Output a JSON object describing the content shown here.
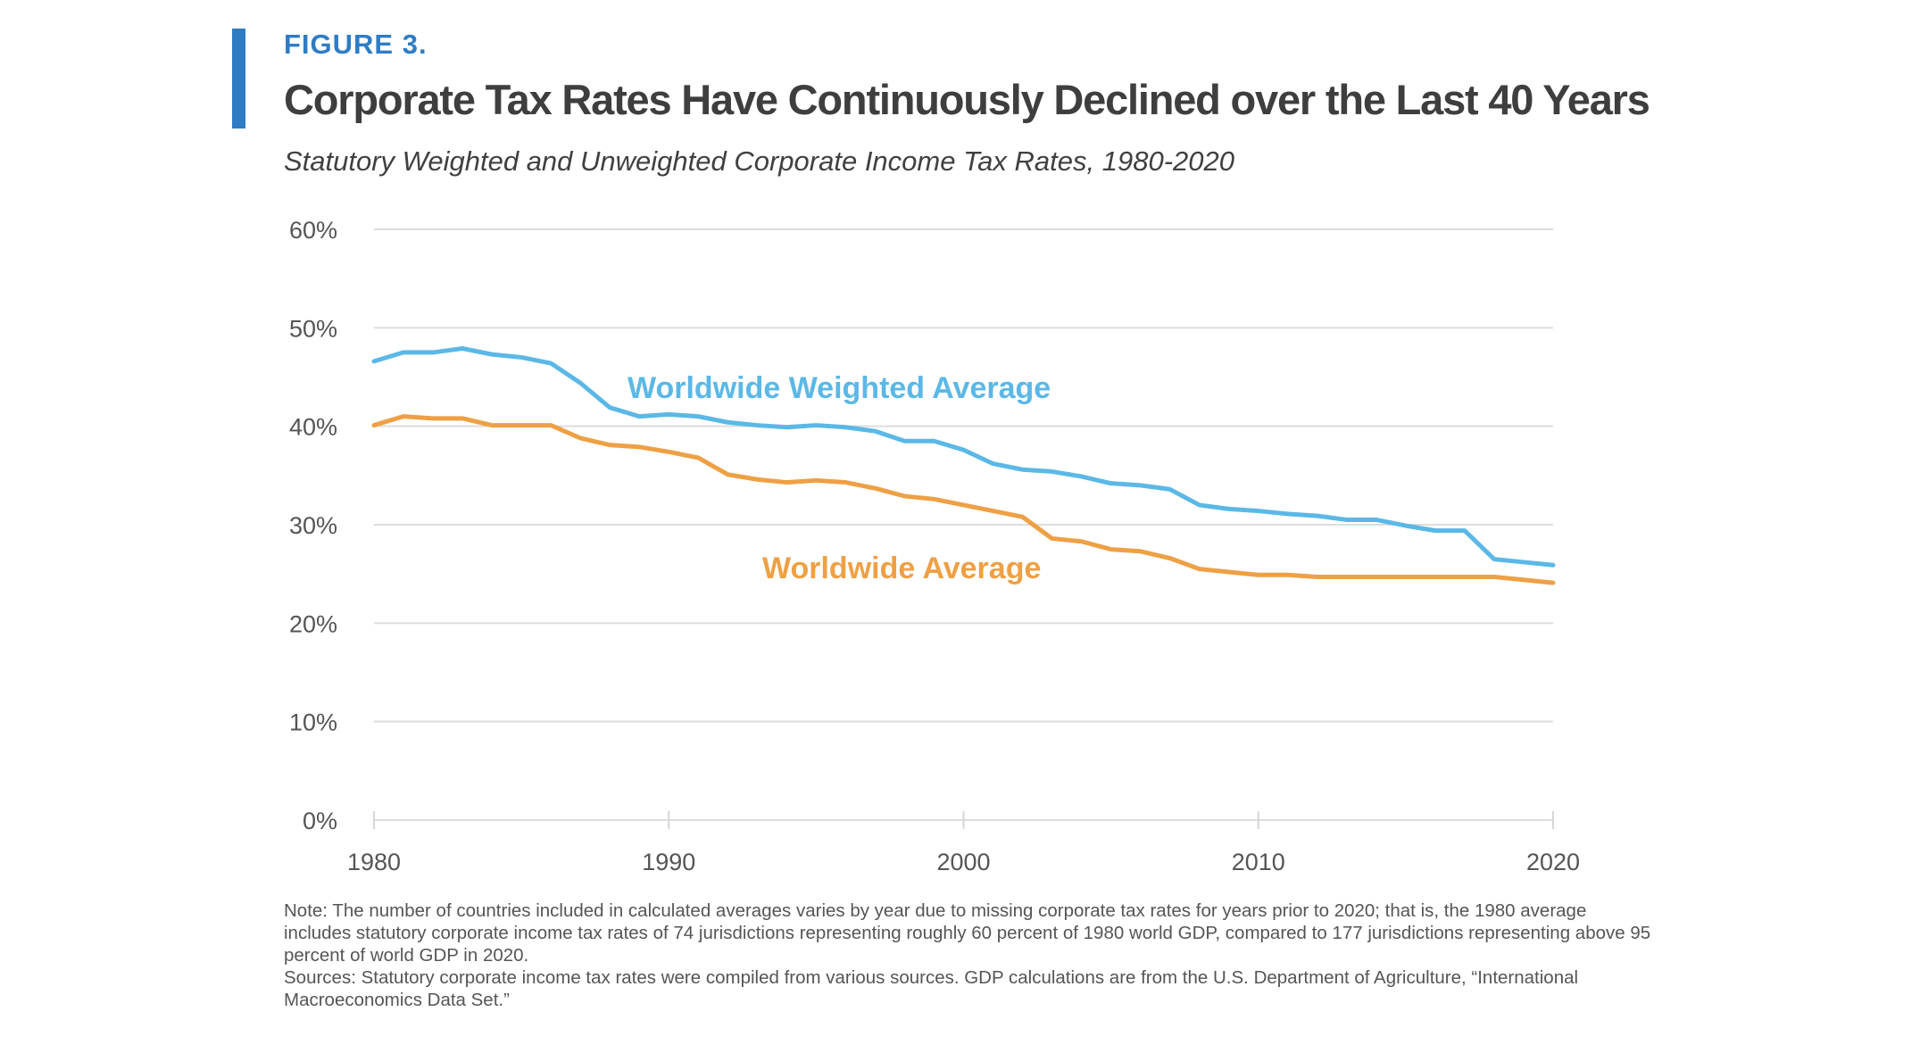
{
  "header": {
    "figure_label": "FIGURE 3.",
    "title": "Corporate Tax Rates Have Continuously Declined over the Last 40 Years",
    "subtitle": "Statutory Weighted and Unweighted Corporate Income Tax Rates, 1980-2020",
    "accent_color": "#2f7cc4"
  },
  "chart_data": {
    "type": "line",
    "title": "Corporate Tax Rates Have Continuously Declined over the Last 40 Years",
    "subtitle": "Statutory Weighted and Unweighted Corporate Income Tax Rates, 1980-2020",
    "xlabel": "",
    "ylabel": "",
    "xlim": [
      1980,
      2020
    ],
    "ylim": [
      0,
      60
    ],
    "x_ticks": [
      1980,
      1990,
      2000,
      2010,
      2020
    ],
    "x_tick_labels": [
      "1980",
      "1990",
      "2000",
      "2010",
      "2020"
    ],
    "y_ticks": [
      0,
      10,
      20,
      30,
      40,
      50,
      60
    ],
    "y_tick_labels": [
      "0%",
      "10%",
      "20%",
      "30%",
      "40%",
      "50%",
      "60%"
    ],
    "grid": "horizontal",
    "legend": "inline labels",
    "x": [
      1980,
      1981,
      1982,
      1983,
      1984,
      1985,
      1986,
      1987,
      1988,
      1989,
      1990,
      1991,
      1992,
      1993,
      1994,
      1995,
      1996,
      1997,
      1998,
      1999,
      2000,
      2001,
      2002,
      2003,
      2004,
      2005,
      2006,
      2007,
      2008,
      2009,
      2010,
      2011,
      2012,
      2013,
      2014,
      2015,
      2016,
      2017,
      2018,
      2019,
      2020
    ],
    "series": [
      {
        "name": "Worldwide Weighted Average",
        "label": "Worldwide Weighted Average",
        "color": "#5bb8e6",
        "values": [
          46.6,
          47.5,
          47.5,
          47.9,
          47.3,
          47.0,
          46.4,
          44.4,
          41.9,
          41.0,
          41.2,
          41.0,
          40.4,
          40.1,
          39.9,
          40.1,
          39.9,
          39.5,
          38.5,
          38.5,
          37.6,
          36.2,
          35.6,
          35.4,
          34.9,
          34.2,
          34.0,
          33.6,
          32.0,
          31.6,
          31.4,
          31.1,
          30.9,
          30.5,
          30.5,
          29.9,
          29.4,
          29.4,
          26.5,
          26.2,
          25.9
        ]
      },
      {
        "name": "Worldwide Average",
        "label": "Worldwide Average",
        "color": "#eea045",
        "values": [
          40.1,
          41.0,
          40.8,
          40.8,
          40.1,
          40.1,
          40.1,
          38.8,
          38.1,
          37.9,
          37.4,
          36.8,
          35.1,
          34.6,
          34.3,
          34.5,
          34.3,
          33.7,
          32.9,
          32.6,
          32.0,
          31.4,
          30.8,
          28.6,
          28.3,
          27.5,
          27.3,
          26.6,
          25.5,
          25.2,
          24.9,
          24.9,
          24.7,
          24.7,
          24.7,
          24.7,
          24.7,
          24.7,
          24.7,
          24.4,
          24.1
        ]
      }
    ]
  },
  "footer": {
    "note": "Note: The number of countries included in calculated averages varies by year due to missing corporate tax rates for years prior to 2020; that is, the 1980 average includes statutory corporate income tax rates of 74 jurisdictions representing roughly 60 percent of 1980 world GDP, compared to 177 jurisdictions representing above 95 percent of world GDP in 2020.",
    "sources": "Sources: Statutory corporate income tax rates were compiled from various sources. GDP calculations are from the U.S. Department of Agriculture, “International Macroeconomics Data Set.”"
  }
}
